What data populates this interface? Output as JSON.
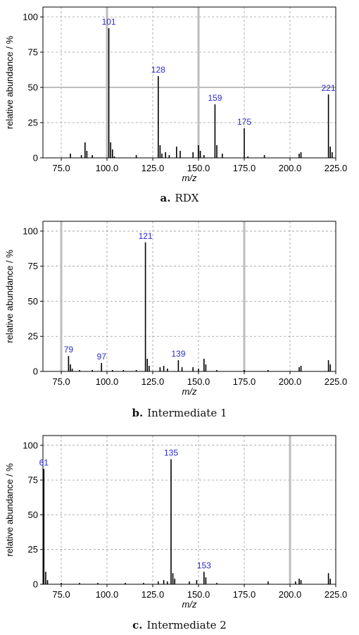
{
  "colors": {
    "axis": "#000000",
    "grid": "#9a9a9a",
    "marker": "#bdbdbd",
    "peak_label": "#2a2ad0",
    "stem": "#000000"
  },
  "chart_data": [
    {
      "type": "bar",
      "caption_letter": "a.",
      "caption_text": "RDX",
      "xlabel": "m/z",
      "ylabel": "relative abundance / %",
      "xlim": [
        65,
        225
      ],
      "ylim": [
        0,
        107
      ],
      "xticks": [
        "75.0",
        "100.0",
        "125.0",
        "150.0",
        "175.0",
        "200.0",
        "225.0"
      ],
      "yticks": [
        "0",
        "25",
        "50",
        "75",
        "100"
      ],
      "grid": true,
      "markers": [
        100,
        150
      ],
      "peaks": [
        {
          "x": 80,
          "y": 3
        },
        {
          "x": 86,
          "y": 2
        },
        {
          "x": 88,
          "y": 11
        },
        {
          "x": 89,
          "y": 5
        },
        {
          "x": 92,
          "y": 2
        },
        {
          "x": 101,
          "y": 92
        },
        {
          "x": 102,
          "y": 11
        },
        {
          "x": 103,
          "y": 6
        },
        {
          "x": 104,
          "y": 1
        },
        {
          "x": 116,
          "y": 2
        },
        {
          "x": 128,
          "y": 58
        },
        {
          "x": 129,
          "y": 9
        },
        {
          "x": 130,
          "y": 3
        },
        {
          "x": 132,
          "y": 4
        },
        {
          "x": 134,
          "y": 2
        },
        {
          "x": 138,
          "y": 8
        },
        {
          "x": 140,
          "y": 5
        },
        {
          "x": 147,
          "y": 4
        },
        {
          "x": 150,
          "y": 9
        },
        {
          "x": 151,
          "y": 5
        },
        {
          "x": 153,
          "y": 2
        },
        {
          "x": 159,
          "y": 38
        },
        {
          "x": 160,
          "y": 9
        },
        {
          "x": 163,
          "y": 3
        },
        {
          "x": 175,
          "y": 21
        },
        {
          "x": 177,
          "y": 1
        },
        {
          "x": 186,
          "y": 2
        },
        {
          "x": 205,
          "y": 3
        },
        {
          "x": 206,
          "y": 4
        },
        {
          "x": 221,
          "y": 45
        },
        {
          "x": 222,
          "y": 8
        },
        {
          "x": 223,
          "y": 4
        }
      ],
      "labels": [
        {
          "x": 101,
          "y": 92,
          "text": "101"
        },
        {
          "x": 128,
          "y": 58,
          "text": "128"
        },
        {
          "x": 159,
          "y": 38,
          "text": "159"
        },
        {
          "x": 175,
          "y": 21,
          "text": "175"
        },
        {
          "x": 221,
          "y": 45,
          "text": "221"
        }
      ]
    },
    {
      "type": "bar",
      "caption_letter": "b.",
      "caption_text": "Intermediate 1",
      "xlabel": "m/z",
      "ylabel": "relative abundance / %",
      "xlim": [
        65,
        225
      ],
      "ylim": [
        0,
        107
      ],
      "xticks": [
        "75.0",
        "100.0",
        "125.0",
        "150.0",
        "175.0",
        "200.0",
        "225.0"
      ],
      "yticks": [
        "0",
        "25",
        "50",
        "75",
        "100"
      ],
      "grid": true,
      "markers": [
        75,
        175
      ],
      "peaks": [
        {
          "x": 79,
          "y": 11
        },
        {
          "x": 80,
          "y": 5
        },
        {
          "x": 81,
          "y": 2
        },
        {
          "x": 85,
          "y": 1
        },
        {
          "x": 92,
          "y": 1
        },
        {
          "x": 97,
          "y": 6
        },
        {
          "x": 103,
          "y": 1
        },
        {
          "x": 109,
          "y": 1
        },
        {
          "x": 116,
          "y": 1
        },
        {
          "x": 121,
          "y": 92
        },
        {
          "x": 122,
          "y": 9
        },
        {
          "x": 123,
          "y": 4
        },
        {
          "x": 129,
          "y": 3
        },
        {
          "x": 131,
          "y": 4
        },
        {
          "x": 133,
          "y": 2
        },
        {
          "x": 139,
          "y": 8
        },
        {
          "x": 141,
          "y": 3
        },
        {
          "x": 147,
          "y": 3
        },
        {
          "x": 150,
          "y": 2
        },
        {
          "x": 153,
          "y": 9
        },
        {
          "x": 154,
          "y": 5
        },
        {
          "x": 160,
          "y": 1
        },
        {
          "x": 175,
          "y": 1
        },
        {
          "x": 188,
          "y": 1
        },
        {
          "x": 205,
          "y": 3
        },
        {
          "x": 206,
          "y": 4
        },
        {
          "x": 221,
          "y": 8
        },
        {
          "x": 222,
          "y": 5
        }
      ],
      "labels": [
        {
          "x": 79,
          "y": 11,
          "text": "79"
        },
        {
          "x": 97,
          "y": 6,
          "text": "97"
        },
        {
          "x": 121,
          "y": 92,
          "text": "121"
        },
        {
          "x": 139,
          "y": 8,
          "text": "139"
        }
      ]
    },
    {
      "type": "bar",
      "caption_letter": "c.",
      "caption_text": "Intermediate 2",
      "xlabel": "m/z",
      "ylabel": "relative abundance / %",
      "xlim": [
        65,
        225
      ],
      "ylim": [
        0,
        107
      ],
      "xticks": [
        "75.0",
        "100.0",
        "125.0",
        "150.0",
        "175.0",
        "200.0",
        "225.0"
      ],
      "yticks": [
        "0",
        "25",
        "50",
        "75",
        "100"
      ],
      "grid": true,
      "markers": [
        200
      ],
      "peaks": [
        {
          "x": 65.5,
          "y": 83
        },
        {
          "x": 66.5,
          "y": 9
        },
        {
          "x": 67.5,
          "y": 3
        },
        {
          "x": 75,
          "y": 1
        },
        {
          "x": 85,
          "y": 1
        },
        {
          "x": 95,
          "y": 1
        },
        {
          "x": 110,
          "y": 1
        },
        {
          "x": 120,
          "y": 1
        },
        {
          "x": 128,
          "y": 2
        },
        {
          "x": 131,
          "y": 3
        },
        {
          "x": 133,
          "y": 2
        },
        {
          "x": 135,
          "y": 90
        },
        {
          "x": 136,
          "y": 8
        },
        {
          "x": 137,
          "y": 4
        },
        {
          "x": 145,
          "y": 2
        },
        {
          "x": 149,
          "y": 3
        },
        {
          "x": 153,
          "y": 9
        },
        {
          "x": 154,
          "y": 5
        },
        {
          "x": 160,
          "y": 1
        },
        {
          "x": 188,
          "y": 2
        },
        {
          "x": 203,
          "y": 2
        },
        {
          "x": 205,
          "y": 4
        },
        {
          "x": 206,
          "y": 3
        },
        {
          "x": 221,
          "y": 8
        },
        {
          "x": 222,
          "y": 4
        }
      ],
      "labels": [
        {
          "x": 65.5,
          "y": 83,
          "text": "61"
        },
        {
          "x": 135,
          "y": 90,
          "text": "135"
        },
        {
          "x": 153,
          "y": 9,
          "text": "153"
        }
      ]
    }
  ]
}
